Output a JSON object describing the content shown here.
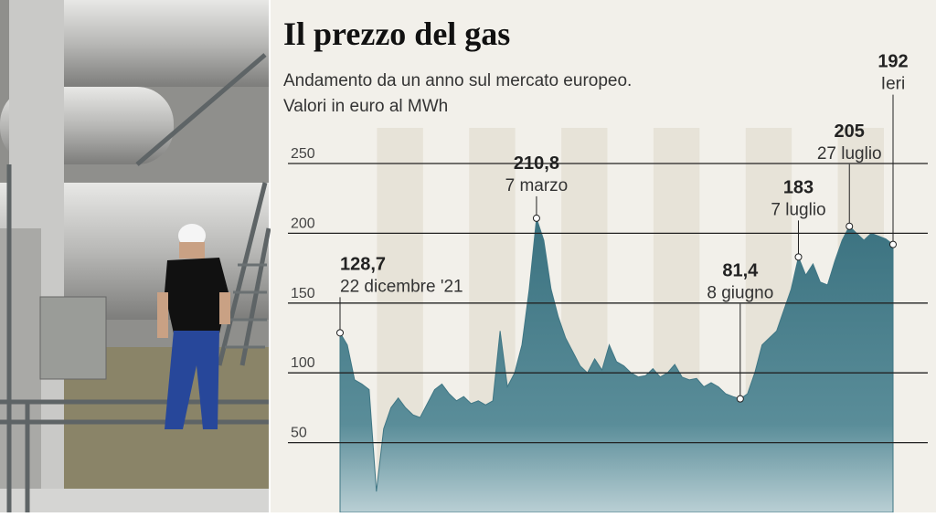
{
  "chart_data": {
    "type": "area",
    "title": "Il prezzo del gas",
    "subtitle": [
      "Andamento da un anno sul mercato europeo.",
      "Valori in euro al MWh"
    ],
    "color": "#3f7684",
    "ylim": [
      0,
      250
    ],
    "yticks": [
      50,
      100,
      150,
      200,
      250
    ],
    "grid": true,
    "values": [
      128.7,
      120,
      95,
      92,
      88,
      15,
      60,
      75,
      82,
      75,
      70,
      68,
      78,
      88,
      92,
      85,
      80,
      83,
      78,
      80,
      77,
      80,
      130,
      90,
      100,
      120,
      160,
      210.8,
      195,
      160,
      140,
      125,
      115,
      105,
      100,
      110,
      102,
      120,
      108,
      105,
      100,
      97,
      98,
      103,
      97,
      100,
      106,
      97,
      95,
      96,
      90,
      93,
      90,
      85,
      83,
      81.4,
      85,
      100,
      120,
      125,
      130,
      145,
      160,
      183,
      170,
      178,
      165,
      163,
      180,
      195,
      205,
      200,
      195,
      200,
      198,
      196,
      192
    ],
    "annotations": [
      {
        "value": 128.7,
        "label": "128,7",
        "text": "22 dicembre '21"
      },
      {
        "value": 210.8,
        "label": "210,8",
        "text": "7 marzo"
      },
      {
        "value": 81.4,
        "label": "81,4",
        "text": "8 giugno"
      },
      {
        "value": 183,
        "text": "7 luglio"
      },
      {
        "value": 205,
        "text": "27 luglio"
      },
      {
        "value": 192,
        "text": "Ieri"
      }
    ]
  }
}
